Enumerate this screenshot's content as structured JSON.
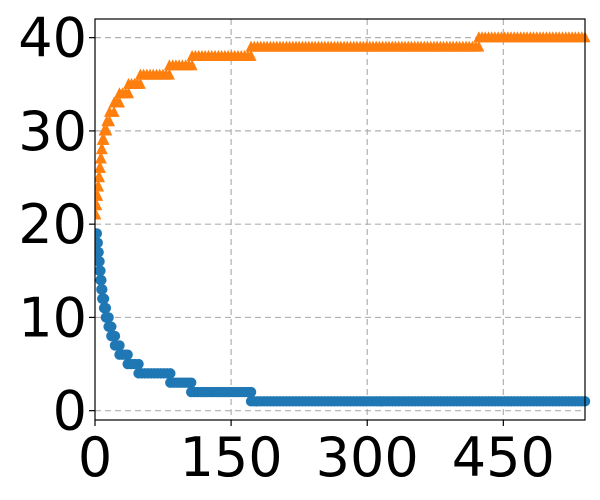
{
  "chart_data": {
    "type": "scatter",
    "title": "",
    "xlabel": "",
    "ylabel": "",
    "xlim": [
      0,
      540
    ],
    "ylim": [
      -1,
      42
    ],
    "grid": true,
    "legend": "none",
    "xticks": [
      0,
      150,
      300,
      450
    ],
    "xtick_labels": [
      "0",
      "150",
      "300",
      "450"
    ],
    "yticks": [
      0,
      10,
      20,
      30,
      40
    ],
    "ytick_labels": [
      "0",
      "10",
      "20",
      "30",
      "40"
    ],
    "series": [
      {
        "marker": "circle",
        "color": "#1f77b4",
        "segments": [
          {
            "x": [
              0,
              2
            ],
            "y": 19
          },
          {
            "x": [
              2,
              3
            ],
            "y": 18
          },
          {
            "x": [
              3,
              4
            ],
            "y": 17
          },
          {
            "x": [
              4,
              5
            ],
            "y": 16
          },
          {
            "x": [
              5,
              6
            ],
            "y": 15
          },
          {
            "x": [
              6,
              7
            ],
            "y": 14
          },
          {
            "x": [
              7,
              8
            ],
            "y": 13
          },
          {
            "x": [
              8,
              10
            ],
            "y": 12
          },
          {
            "x": [
              10,
              12
            ],
            "y": 11
          },
          {
            "x": [
              12,
              15
            ],
            "y": 10
          },
          {
            "x": [
              15,
              18
            ],
            "y": 9
          },
          {
            "x": [
              18,
              22
            ],
            "y": 8
          },
          {
            "x": [
              22,
              27
            ],
            "y": 7
          },
          {
            "x": [
              27,
              36
            ],
            "y": 6
          },
          {
            "x": [
              36,
              48
            ],
            "y": 5
          },
          {
            "x": [
              48,
              83
            ],
            "y": 4
          },
          {
            "x": [
              83,
              106
            ],
            "y": 3
          },
          {
            "x": [
              106,
              172
            ],
            "y": 2
          },
          {
            "x": [
              172,
              540
            ],
            "y": 1
          }
        ]
      },
      {
        "marker": "triangle",
        "color": "#ff7f0e",
        "segments": [
          {
            "x": [
              0,
              1
            ],
            "y": 21
          },
          {
            "x": [
              1,
              2
            ],
            "y": 22
          },
          {
            "x": [
              2,
              3
            ],
            "y": 23
          },
          {
            "x": [
              3,
              4
            ],
            "y": 24
          },
          {
            "x": [
              4,
              5
            ],
            "y": 25
          },
          {
            "x": [
              5,
              6
            ],
            "y": 26
          },
          {
            "x": [
              6,
              7
            ],
            "y": 27
          },
          {
            "x": [
              7,
              8
            ],
            "y": 28
          },
          {
            "x": [
              8,
              10
            ],
            "y": 29
          },
          {
            "x": [
              10,
              13
            ],
            "y": 30
          },
          {
            "x": [
              13,
              16
            ],
            "y": 31
          },
          {
            "x": [
              16,
              21
            ],
            "y": 32
          },
          {
            "x": [
              21,
              27
            ],
            "y": 33
          },
          {
            "x": [
              27,
              37
            ],
            "y": 34
          },
          {
            "x": [
              37,
              50
            ],
            "y": 35
          },
          {
            "x": [
              50,
              82
            ],
            "y": 36
          },
          {
            "x": [
              82,
              107
            ],
            "y": 37
          },
          {
            "x": [
              107,
              172
            ],
            "y": 38
          },
          {
            "x": [
              172,
              423
            ],
            "y": 39
          },
          {
            "x": [
              423,
              540
            ],
            "y": 40
          }
        ]
      }
    ]
  }
}
